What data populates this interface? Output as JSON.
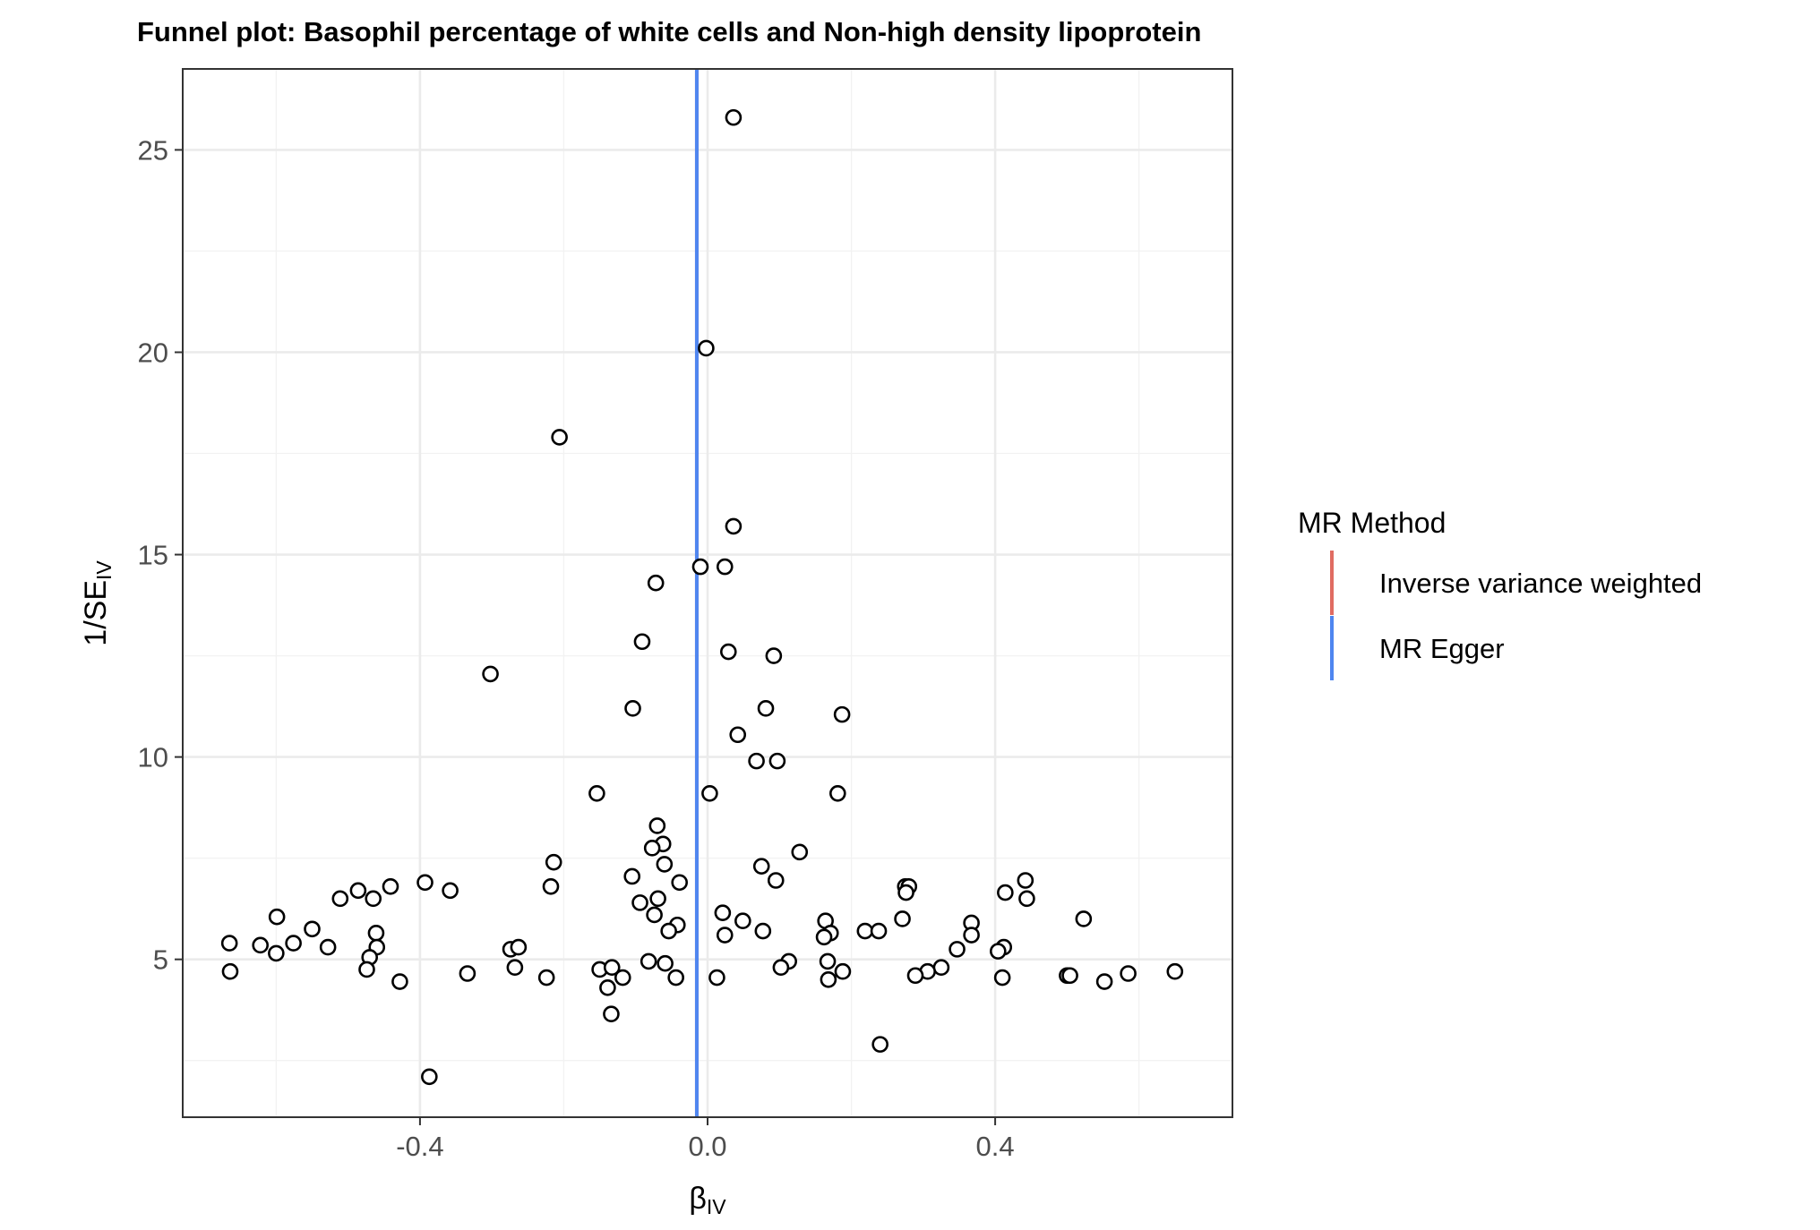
{
  "chart_data": {
    "type": "scatter",
    "title": "Funnel plot: Basophil percentage of white cells and Non-high density lipoprotein",
    "xlabel": "β",
    "xlabel_sub": "IV",
    "ylabel": "1/SE",
    "ylabel_sub": "IV",
    "xlim": [
      -0.73,
      0.73
    ],
    "ylim": [
      1.1,
      27.0
    ],
    "x_major_ticks": [
      -0.4,
      0.0,
      0.4
    ],
    "x_tick_labels": [
      "-0.4",
      "0.0",
      "0.4"
    ],
    "y_major_ticks": [
      5,
      10,
      15,
      20,
      25
    ],
    "y_tick_labels": [
      "5",
      "10",
      "15",
      "20",
      "25"
    ],
    "x_minor_ticks": [
      -0.6,
      -0.2,
      0.2,
      0.6
    ],
    "y_minor_ticks": [
      2.5,
      7.5,
      12.5,
      17.5,
      22.5
    ],
    "grid": true,
    "legend": {
      "title": "MR Method",
      "position": "right",
      "entries": [
        {
          "label": "Inverse variance weighted",
          "color": "#e06c62"
        },
        {
          "label": "MR Egger",
          "color": "#4f86f0"
        }
      ]
    },
    "vlines": [
      {
        "method": "Inverse variance weighted",
        "x": -0.015,
        "color": "#e06c62"
      },
      {
        "method": "MR Egger",
        "x": -0.015,
        "color": "#4f86f0"
      }
    ],
    "points": [
      [
        0.036,
        25.8
      ],
      [
        -0.002,
        20.1
      ],
      [
        -0.206,
        17.9
      ],
      [
        0.036,
        15.7
      ],
      [
        -0.01,
        14.7
      ],
      [
        0.024,
        14.7
      ],
      [
        -0.072,
        14.3
      ],
      [
        -0.091,
        12.85
      ],
      [
        0.029,
        12.6
      ],
      [
        0.092,
        12.5
      ],
      [
        -0.302,
        12.05
      ],
      [
        -0.104,
        11.2
      ],
      [
        0.081,
        11.2
      ],
      [
        0.187,
        11.05
      ],
      [
        0.042,
        10.55
      ],
      [
        0.068,
        9.9
      ],
      [
        0.097,
        9.9
      ],
      [
        -0.154,
        9.1
      ],
      [
        0.003,
        9.1
      ],
      [
        0.181,
        9.1
      ],
      [
        -0.07,
        8.3
      ],
      [
        -0.062,
        7.85
      ],
      [
        -0.077,
        7.75
      ],
      [
        0.128,
        7.65
      ],
      [
        -0.214,
        7.4
      ],
      [
        -0.06,
        7.35
      ],
      [
        0.075,
        7.3
      ],
      [
        -0.105,
        7.05
      ],
      [
        0.095,
        6.95
      ],
      [
        -0.039,
        6.9
      ],
      [
        -0.393,
        6.9
      ],
      [
        0.442,
        6.95
      ],
      [
        -0.358,
        6.7
      ],
      [
        -0.486,
        6.7
      ],
      [
        -0.441,
        6.8
      ],
      [
        -0.218,
        6.8
      ],
      [
        0.275,
        6.8
      ],
      [
        0.28,
        6.8
      ],
      [
        0.414,
        6.65
      ],
      [
        0.276,
        6.65
      ],
      [
        -0.511,
        6.5
      ],
      [
        -0.465,
        6.5
      ],
      [
        -0.069,
        6.5
      ],
      [
        0.444,
        6.5
      ],
      [
        -0.094,
        6.4
      ],
      [
        0.021,
        6.15
      ],
      [
        -0.599,
        6.05
      ],
      [
        -0.074,
        6.1
      ],
      [
        0.271,
        6.0
      ],
      [
        0.523,
        6.0
      ],
      [
        0.049,
        5.95
      ],
      [
        0.164,
        5.95
      ],
      [
        0.367,
        5.9
      ],
      [
        -0.042,
        5.85
      ],
      [
        -0.55,
        5.75
      ],
      [
        -0.054,
        5.7
      ],
      [
        0.077,
        5.7
      ],
      [
        0.219,
        5.7
      ],
      [
        0.238,
        5.7
      ],
      [
        -0.461,
        5.65
      ],
      [
        0.171,
        5.65
      ],
      [
        0.367,
        5.6
      ],
      [
        0.024,
        5.6
      ],
      [
        0.162,
        5.55
      ],
      [
        -0.622,
        5.35
      ],
      [
        -0.576,
        5.4
      ],
      [
        -0.665,
        5.4
      ],
      [
        -0.528,
        5.3
      ],
      [
        -0.274,
        5.25
      ],
      [
        -0.263,
        5.3
      ],
      [
        -0.46,
        5.3
      ],
      [
        0.347,
        5.25
      ],
      [
        0.412,
        5.3
      ],
      [
        0.404,
        5.2
      ],
      [
        -0.6,
        5.15
      ],
      [
        -0.47,
        5.05
      ],
      [
        0.167,
        4.95
      ],
      [
        -0.082,
        4.95
      ],
      [
        -0.059,
        4.9
      ],
      [
        0.113,
        4.95
      ],
      [
        0.102,
        4.8
      ],
      [
        0.325,
        4.8
      ],
      [
        -0.268,
        4.8
      ],
      [
        -0.15,
        4.75
      ],
      [
        -0.133,
        4.8
      ],
      [
        -0.664,
        4.7
      ],
      [
        -0.474,
        4.75
      ],
      [
        0.306,
        4.7
      ],
      [
        0.188,
        4.7
      ],
      [
        0.289,
        4.6
      ],
      [
        0.585,
        4.65
      ],
      [
        0.65,
        4.7
      ],
      [
        -0.334,
        4.65
      ],
      [
        -0.224,
        4.55
      ],
      [
        -0.118,
        4.55
      ],
      [
        -0.044,
        4.55
      ],
      [
        0.013,
        4.55
      ],
      [
        0.41,
        4.55
      ],
      [
        0.5,
        4.6
      ],
      [
        0.504,
        4.6
      ],
      [
        -0.428,
        4.45
      ],
      [
        0.168,
        4.5
      ],
      [
        0.552,
        4.45
      ],
      [
        -0.139,
        4.3
      ],
      [
        -0.134,
        3.65
      ],
      [
        0.24,
        2.9
      ],
      [
        -0.387,
        2.1
      ]
    ]
  }
}
